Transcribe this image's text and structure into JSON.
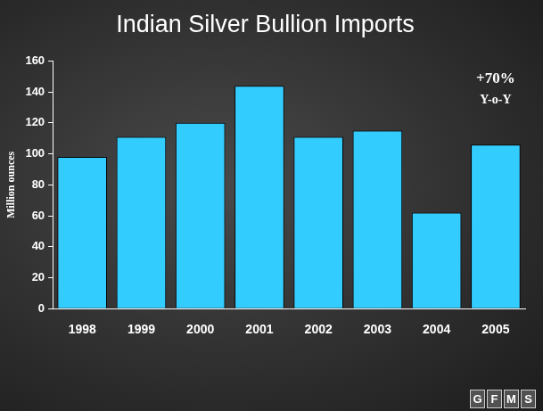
{
  "chart_data": {
    "type": "bar",
    "title": "Indian Silver Bullion Imports",
    "y_label": "Million ounces",
    "categories": [
      "1998",
      "1999",
      "2000",
      "2001",
      "2002",
      "2003",
      "2004",
      "2005"
    ],
    "values": [
      98,
      111,
      120,
      144,
      111,
      115,
      62,
      106
    ],
    "color": "#33ccff",
    "ylim": [
      0,
      160
    ],
    "yticks": [
      0,
      20,
      40,
      60,
      80,
      100,
      120,
      140,
      160
    ],
    "grid": false,
    "annotations": [
      "+70%",
      "Y-o-Y"
    ],
    "logo": "GFMS"
  }
}
